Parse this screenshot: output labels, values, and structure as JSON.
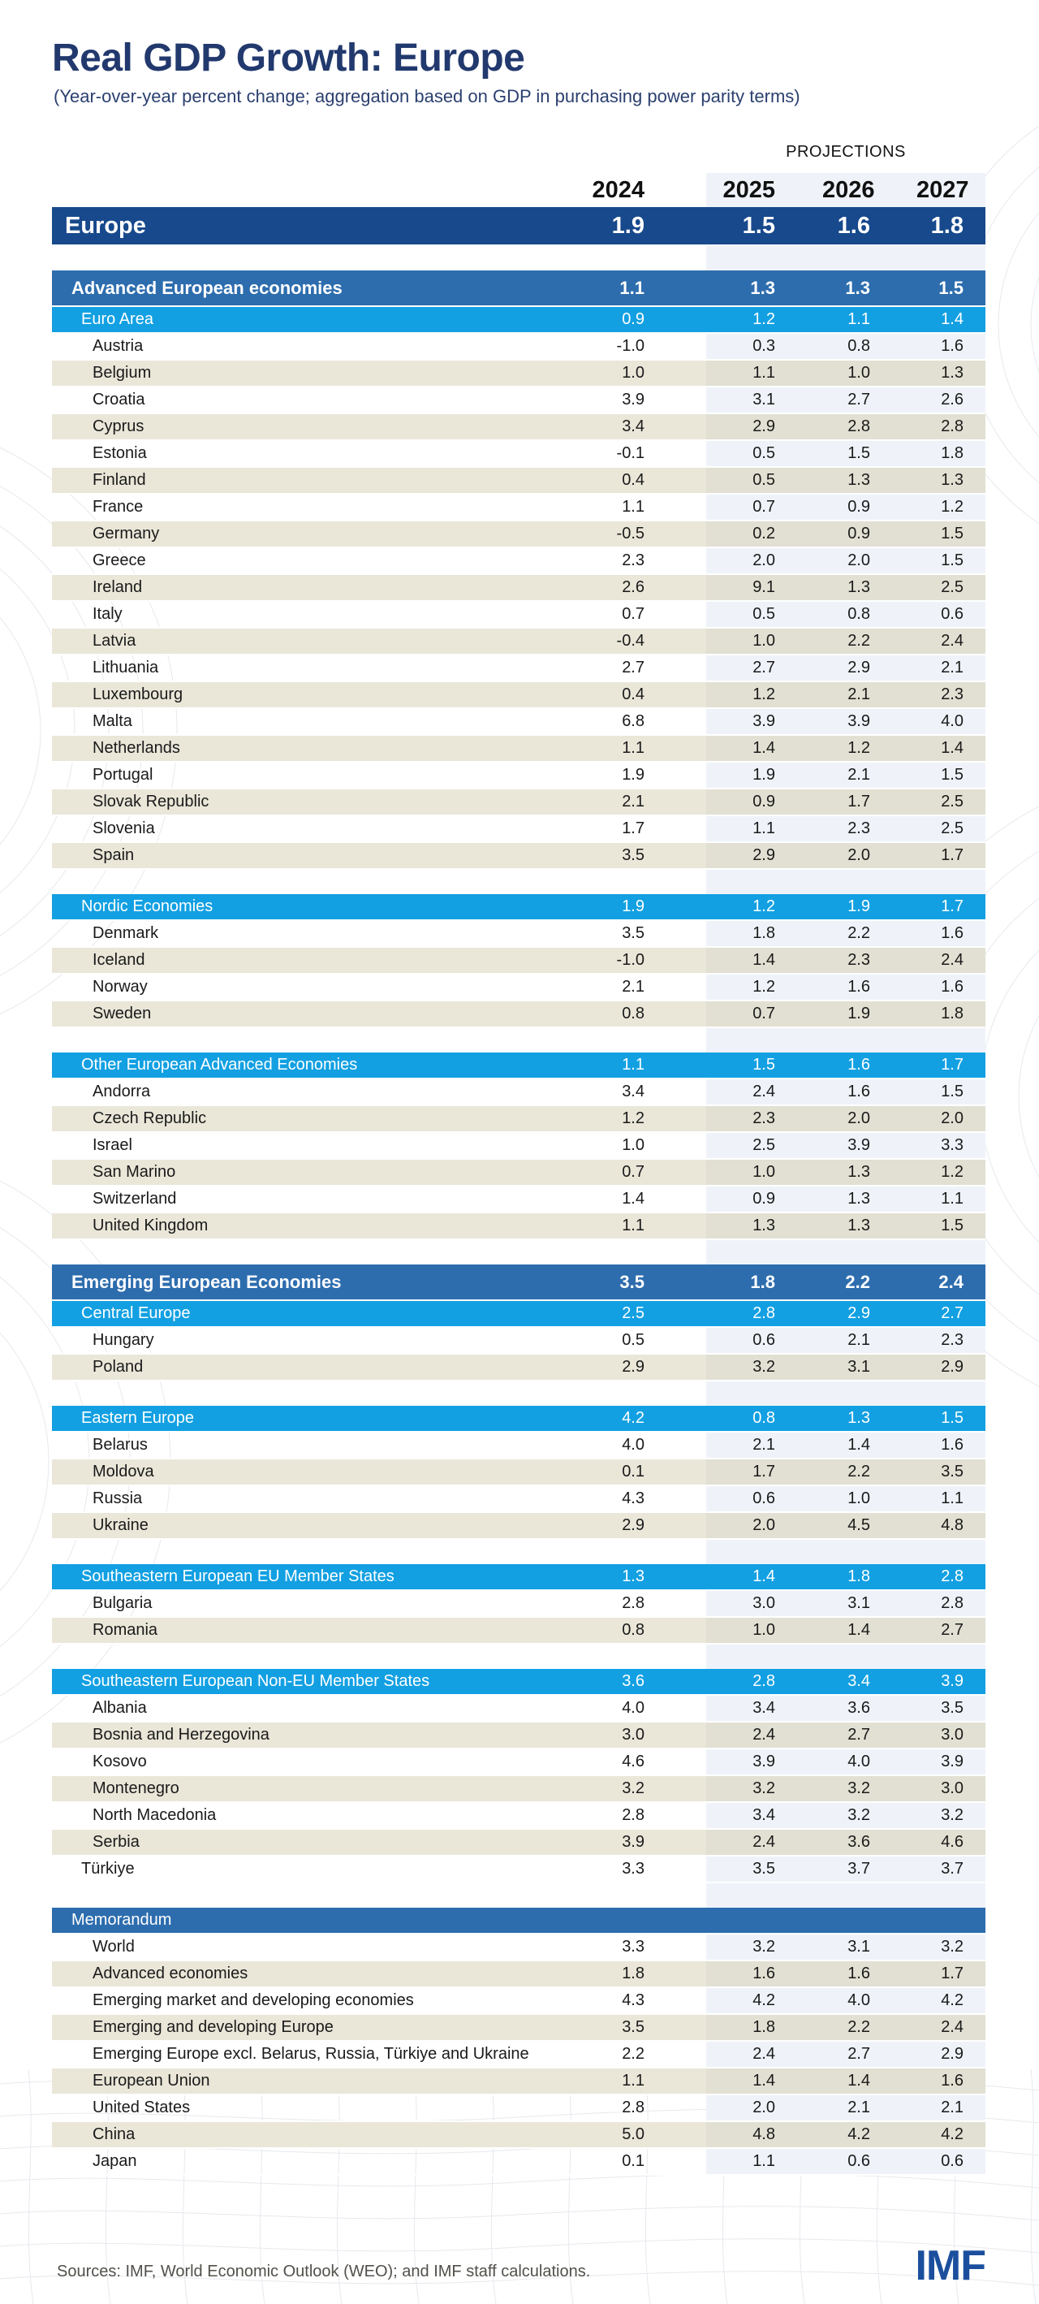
{
  "page": {
    "title": "Real GDP Growth: Europe",
    "subtitle": "(Year-over-year percent change; aggregation based on GDP in purchasing power parity terms)",
    "projections_label": "PROJECTIONS",
    "source_note": "Sources: IMF, World Economic Outlook (WEO); and IMF staff calculations.",
    "logo_text": "IMF"
  },
  "colors": {
    "title_navy": "#22396e",
    "europe_row_blue": "#17498c",
    "tier1_blue": "#2d6dae",
    "tier2_cyan": "#12a0e2",
    "beige_row": "#eae7d9",
    "beige_row_projection": "#e1e0d2",
    "projection_band": "#eff3f9",
    "logo_blue": "#1b4f9e"
  },
  "chart_data": {
    "type": "table",
    "title": "Real GDP Growth: Europe",
    "subtitle": "(Year-over-year percent change; aggregation based on GDP in purchasing power parity terms)",
    "columns": [
      "2024",
      "2025",
      "2026",
      "2027"
    ],
    "columns_note": "2025-2027 are projections",
    "rows": [
      {
        "k": "europe",
        "label": "Europe",
        "v": [
          "1.9",
          "1.5",
          "1.6",
          "1.8"
        ]
      },
      {
        "k": "gap"
      },
      {
        "k": "t1",
        "label": "Advanced European economies",
        "v": [
          "1.1",
          "1.3",
          "1.3",
          "1.5"
        ]
      },
      {
        "k": "t2",
        "label": "Euro Area",
        "v": [
          "0.9",
          "1.2",
          "1.1",
          "1.4"
        ]
      },
      {
        "k": "c",
        "s": "w",
        "label": "Austria",
        "v": [
          "-1.0",
          "0.3",
          "0.8",
          "1.6"
        ]
      },
      {
        "k": "c",
        "s": "b",
        "label": "Belgium",
        "v": [
          "1.0",
          "1.1",
          "1.0",
          "1.3"
        ]
      },
      {
        "k": "c",
        "s": "w",
        "label": "Croatia",
        "v": [
          "3.9",
          "3.1",
          "2.7",
          "2.6"
        ]
      },
      {
        "k": "c",
        "s": "b",
        "label": "Cyprus",
        "v": [
          "3.4",
          "2.9",
          "2.8",
          "2.8"
        ]
      },
      {
        "k": "c",
        "s": "w",
        "label": "Estonia",
        "v": [
          "-0.1",
          "0.5",
          "1.5",
          "1.8"
        ]
      },
      {
        "k": "c",
        "s": "b",
        "label": "Finland",
        "v": [
          "0.4",
          "0.5",
          "1.3",
          "1.3"
        ]
      },
      {
        "k": "c",
        "s": "w",
        "label": "France",
        "v": [
          "1.1",
          "0.7",
          "0.9",
          "1.2"
        ]
      },
      {
        "k": "c",
        "s": "b",
        "label": "Germany",
        "v": [
          "-0.5",
          "0.2",
          "0.9",
          "1.5"
        ]
      },
      {
        "k": "c",
        "s": "w",
        "label": "Greece",
        "v": [
          "2.3",
          "2.0",
          "2.0",
          "1.5"
        ]
      },
      {
        "k": "c",
        "s": "b",
        "label": "Ireland",
        "v": [
          "2.6",
          "9.1",
          "1.3",
          "2.5"
        ]
      },
      {
        "k": "c",
        "s": "w",
        "label": "Italy",
        "v": [
          "0.7",
          "0.5",
          "0.8",
          "0.6"
        ]
      },
      {
        "k": "c",
        "s": "b",
        "label": "Latvia",
        "v": [
          "-0.4",
          "1.0",
          "2.2",
          "2.4"
        ]
      },
      {
        "k": "c",
        "s": "w",
        "label": "Lithuania",
        "v": [
          "2.7",
          "2.7",
          "2.9",
          "2.1"
        ]
      },
      {
        "k": "c",
        "s": "b",
        "label": "Luxembourg",
        "v": [
          "0.4",
          "1.2",
          "2.1",
          "2.3"
        ]
      },
      {
        "k": "c",
        "s": "w",
        "label": "Malta",
        "v": [
          "6.8",
          "3.9",
          "3.9",
          "4.0"
        ]
      },
      {
        "k": "c",
        "s": "b",
        "label": "Netherlands",
        "v": [
          "1.1",
          "1.4",
          "1.2",
          "1.4"
        ]
      },
      {
        "k": "c",
        "s": "w",
        "label": "Portugal",
        "v": [
          "1.9",
          "1.9",
          "2.1",
          "1.5"
        ]
      },
      {
        "k": "c",
        "s": "b",
        "label": "Slovak Republic",
        "v": [
          "2.1",
          "0.9",
          "1.7",
          "2.5"
        ]
      },
      {
        "k": "c",
        "s": "w",
        "label": "Slovenia",
        "v": [
          "1.7",
          "1.1",
          "2.3",
          "2.5"
        ]
      },
      {
        "k": "c",
        "s": "b",
        "label": "Spain",
        "v": [
          "3.5",
          "2.9",
          "2.0",
          "1.7"
        ]
      },
      {
        "k": "gap"
      },
      {
        "k": "t2",
        "label": "Nordic Economies",
        "v": [
          "1.9",
          "1.2",
          "1.9",
          "1.7"
        ]
      },
      {
        "k": "c",
        "s": "w",
        "label": "Denmark",
        "v": [
          "3.5",
          "1.8",
          "2.2",
          "1.6"
        ]
      },
      {
        "k": "c",
        "s": "b",
        "label": "Iceland",
        "v": [
          "-1.0",
          "1.4",
          "2.3",
          "2.4"
        ]
      },
      {
        "k": "c",
        "s": "w",
        "label": "Norway",
        "v": [
          "2.1",
          "1.2",
          "1.6",
          "1.6"
        ]
      },
      {
        "k": "c",
        "s": "b",
        "label": "Sweden",
        "v": [
          "0.8",
          "0.7",
          "1.9",
          "1.8"
        ]
      },
      {
        "k": "gap"
      },
      {
        "k": "t2",
        "label": "Other European Advanced Economies",
        "v": [
          "1.1",
          "1.5",
          "1.6",
          "1.7"
        ]
      },
      {
        "k": "c",
        "s": "w",
        "label": "Andorra",
        "v": [
          "3.4",
          "2.4",
          "1.6",
          "1.5"
        ]
      },
      {
        "k": "c",
        "s": "b",
        "label": "Czech Republic",
        "v": [
          "1.2",
          "2.3",
          "2.0",
          "2.0"
        ]
      },
      {
        "k": "c",
        "s": "w",
        "label": "Israel",
        "v": [
          "1.0",
          "2.5",
          "3.9",
          "3.3"
        ]
      },
      {
        "k": "c",
        "s": "b",
        "label": "San Marino",
        "v": [
          "0.7",
          "1.0",
          "1.3",
          "1.2"
        ]
      },
      {
        "k": "c",
        "s": "w",
        "label": "Switzerland",
        "v": [
          "1.4",
          "0.9",
          "1.3",
          "1.1"
        ]
      },
      {
        "k": "c",
        "s": "b",
        "label": "United Kingdom",
        "v": [
          "1.1",
          "1.3",
          "1.3",
          "1.5"
        ]
      },
      {
        "k": "gap"
      },
      {
        "k": "t1",
        "label": "Emerging European Economies",
        "v": [
          "3.5",
          "1.8",
          "2.2",
          "2.4"
        ]
      },
      {
        "k": "t2",
        "label": "Central Europe",
        "v": [
          "2.5",
          "2.8",
          "2.9",
          "2.7"
        ]
      },
      {
        "k": "c",
        "s": "w",
        "label": "Hungary",
        "v": [
          "0.5",
          "0.6",
          "2.1",
          "2.3"
        ]
      },
      {
        "k": "c",
        "s": "b",
        "label": "Poland",
        "v": [
          "2.9",
          "3.2",
          "3.1",
          "2.9"
        ]
      },
      {
        "k": "gap"
      },
      {
        "k": "t2",
        "label": "Eastern Europe",
        "v": [
          "4.2",
          "0.8",
          "1.3",
          "1.5"
        ]
      },
      {
        "k": "c",
        "s": "w",
        "label": "Belarus",
        "v": [
          "4.0",
          "2.1",
          "1.4",
          "1.6"
        ]
      },
      {
        "k": "c",
        "s": "b",
        "label": "Moldova",
        "v": [
          "0.1",
          "1.7",
          "2.2",
          "3.5"
        ]
      },
      {
        "k": "c",
        "s": "w",
        "label": "Russia",
        "v": [
          "4.3",
          "0.6",
          "1.0",
          "1.1"
        ]
      },
      {
        "k": "c",
        "s": "b",
        "label": "Ukraine",
        "v": [
          "2.9",
          "2.0",
          "4.5",
          "4.8"
        ]
      },
      {
        "k": "gap"
      },
      {
        "k": "t2",
        "label": "Southeastern European EU Member States",
        "v": [
          "1.3",
          "1.4",
          "1.8",
          "2.8"
        ]
      },
      {
        "k": "c",
        "s": "w",
        "label": "Bulgaria",
        "v": [
          "2.8",
          "3.0",
          "3.1",
          "2.8"
        ]
      },
      {
        "k": "c",
        "s": "b",
        "label": "Romania",
        "v": [
          "0.8",
          "1.0",
          "1.4",
          "2.7"
        ]
      },
      {
        "k": "gap"
      },
      {
        "k": "t2",
        "label": "Southeastern European Non-EU Member States",
        "v": [
          "3.6",
          "2.8",
          "3.4",
          "3.9"
        ]
      },
      {
        "k": "c",
        "s": "w",
        "label": "Albania",
        "v": [
          "4.0",
          "3.4",
          "3.6",
          "3.5"
        ]
      },
      {
        "k": "c",
        "s": "b",
        "label": "Bosnia and Herzegovina",
        "v": [
          "3.0",
          "2.4",
          "2.7",
          "3.0"
        ]
      },
      {
        "k": "c",
        "s": "w",
        "label": "Kosovo",
        "v": [
          "4.6",
          "3.9",
          "4.0",
          "3.9"
        ]
      },
      {
        "k": "c",
        "s": "b",
        "label": "Montenegro",
        "v": [
          "3.2",
          "3.2",
          "3.2",
          "3.0"
        ]
      },
      {
        "k": "c",
        "s": "w",
        "label": "North Macedonia",
        "v": [
          "2.8",
          "3.4",
          "3.2",
          "3.2"
        ]
      },
      {
        "k": "c",
        "s": "b",
        "label": "Serbia",
        "v": [
          "3.9",
          "2.4",
          "3.6",
          "4.6"
        ]
      },
      {
        "k": "c",
        "s": "w",
        "i": "t2",
        "label": "Türkiye",
        "v": [
          "3.3",
          "3.5",
          "3.7",
          "3.7"
        ]
      },
      {
        "k": "gap"
      },
      {
        "k": "memo",
        "label": "Memorandum",
        "v": [
          "",
          "",
          "",
          ""
        ]
      },
      {
        "k": "c",
        "s": "w",
        "label": "World",
        "v": [
          "3.3",
          "3.2",
          "3.1",
          "3.2"
        ]
      },
      {
        "k": "c",
        "s": "b",
        "label": "Advanced economies",
        "v": [
          "1.8",
          "1.6",
          "1.6",
          "1.7"
        ]
      },
      {
        "k": "c",
        "s": "w",
        "label": "Emerging market and developing economies",
        "v": [
          "4.3",
          "4.2",
          "4.0",
          "4.2"
        ]
      },
      {
        "k": "c",
        "s": "b",
        "label": "Emerging and developing Europe",
        "v": [
          "3.5",
          "1.8",
          "2.2",
          "2.4"
        ]
      },
      {
        "k": "c",
        "s": "w",
        "label": "Emerging Europe excl. Belarus, Russia, Türkiye and Ukraine",
        "v": [
          "2.2",
          "2.4",
          "2.7",
          "2.9"
        ]
      },
      {
        "k": "c",
        "s": "b",
        "label": "European Union",
        "v": [
          "1.1",
          "1.4",
          "1.4",
          "1.6"
        ]
      },
      {
        "k": "c",
        "s": "w",
        "label": "United States",
        "v": [
          "2.8",
          "2.0",
          "2.1",
          "2.1"
        ]
      },
      {
        "k": "c",
        "s": "b",
        "label": "China",
        "v": [
          "5.0",
          "4.8",
          "4.2",
          "4.2"
        ]
      },
      {
        "k": "c",
        "s": "w",
        "label": "Japan",
        "v": [
          "0.1",
          "1.1",
          "0.6",
          "0.6"
        ]
      }
    ]
  }
}
